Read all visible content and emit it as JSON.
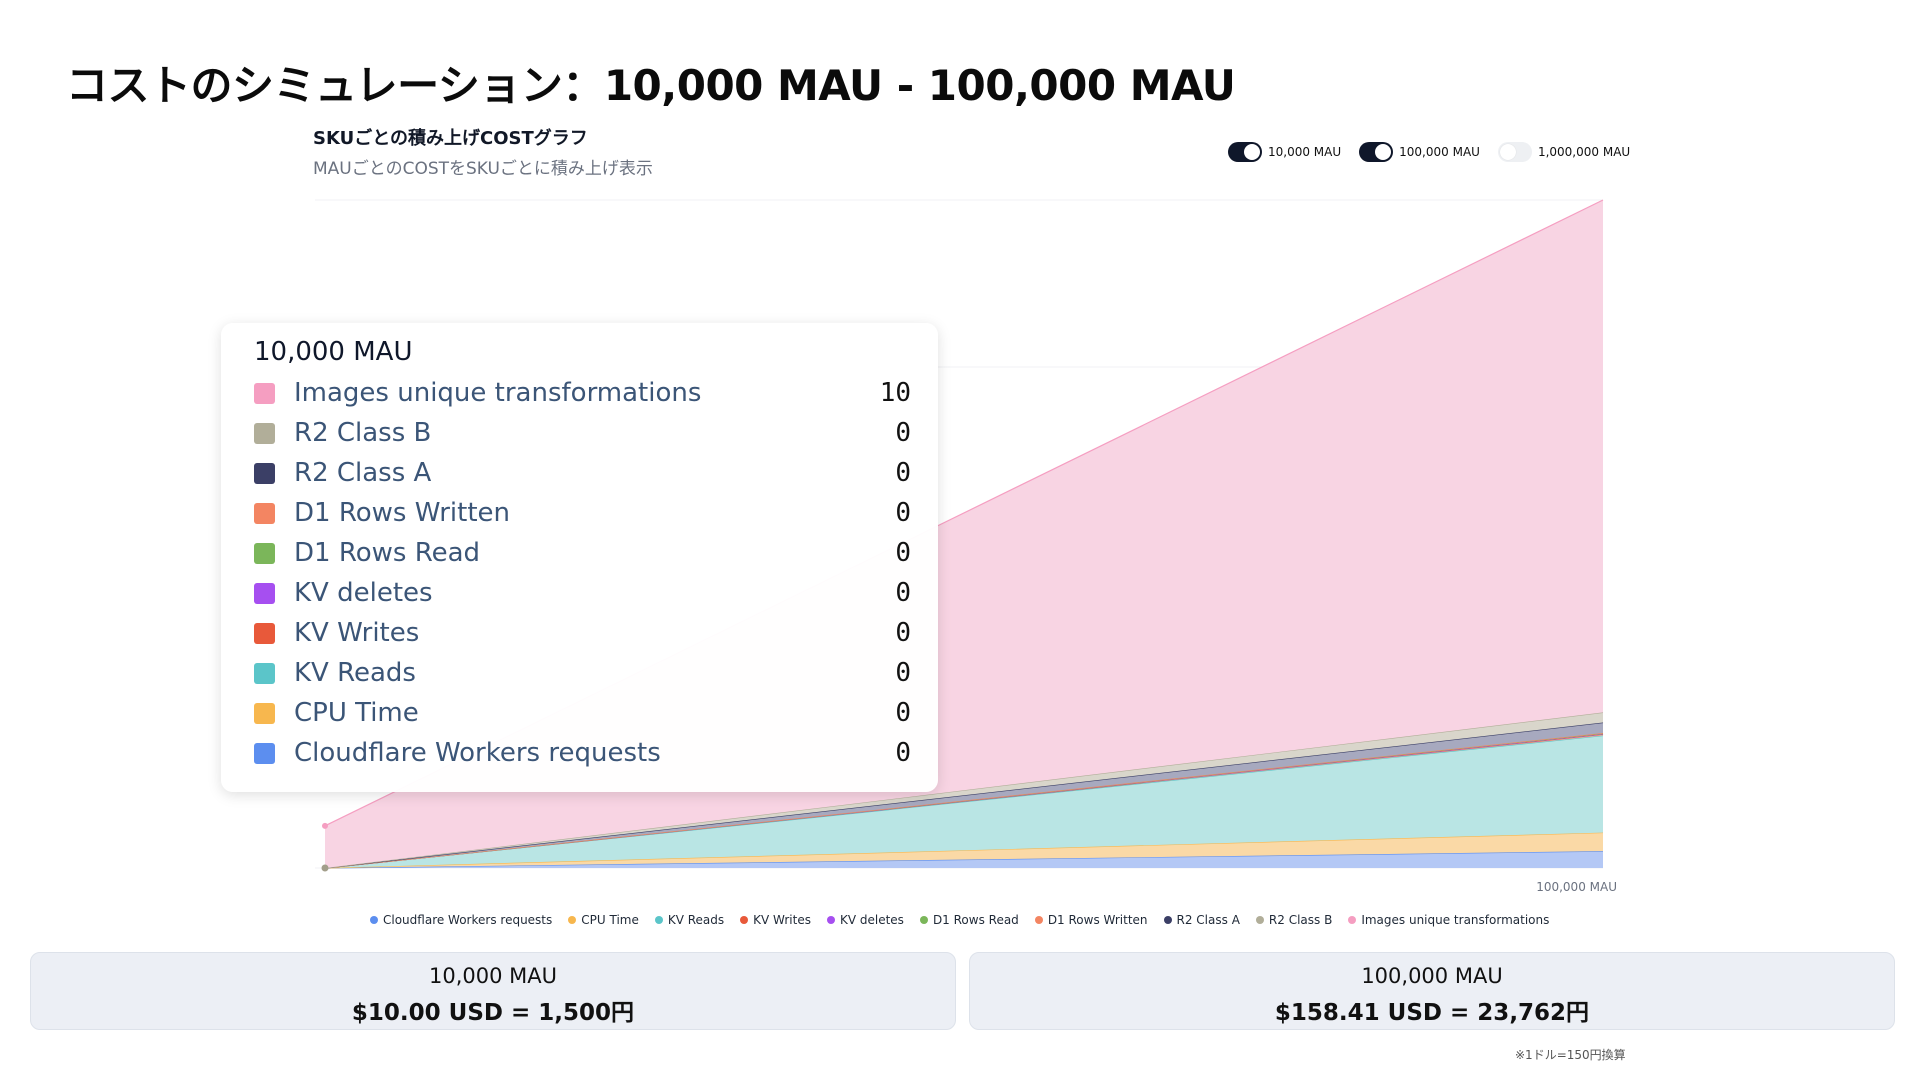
{
  "slide_title": "コストのシミュレーション：10,000 MAU - 100,000 MAU",
  "chart_title": "SKUごとの積み上げCOSTグラフ",
  "chart_subtitle": "MAUごとのCOSTをSKUごとに積み上げ表示",
  "toggles": [
    {
      "label": "10,000 MAU",
      "on": true
    },
    {
      "label": "100,000 MAU",
      "on": true
    },
    {
      "label": "1,000,000 MAU",
      "on": false
    }
  ],
  "tooltip": {
    "title": "10,000 MAU",
    "rows": [
      {
        "label": "Images unique transformations",
        "value": "10",
        "color": "#f59ec1"
      },
      {
        "label": "R2 Class B",
        "value": "0",
        "color": "#b1ae99"
      },
      {
        "label": "R2 Class A",
        "value": "0",
        "color": "#3b3f66"
      },
      {
        "label": "D1 Rows Written",
        "value": "0",
        "color": "#f38562"
      },
      {
        "label": "D1 Rows Read",
        "value": "0",
        "color": "#7bb65a"
      },
      {
        "label": "KV deletes",
        "value": "0",
        "color": "#a64ff0"
      },
      {
        "label": "KV Writes",
        "value": "0",
        "color": "#e8593a"
      },
      {
        "label": "KV Reads",
        "value": "0",
        "color": "#5bc5c9"
      },
      {
        "label": "CPU Time",
        "value": "0",
        "color": "#f7b74e"
      },
      {
        "label": "Cloudflare Workers requests",
        "value": "0",
        "color": "#5c8eef"
      }
    ]
  },
  "summary": [
    {
      "mau": "10,000 MAU",
      "cost": "$10.00 USD = 1,500円"
    },
    {
      "mau": "100,000 MAU",
      "cost": "$158.41 USD = 23,762円"
    }
  ],
  "footnote": "※1ドル=150円換算",
  "chart_data": {
    "type": "area",
    "stacked": true,
    "x": [
      "10,000 MAU",
      "100,000 MAU"
    ],
    "x_tick_labels_shown": [
      "100,000 MAU"
    ],
    "grid": true,
    "legend_position": "bottom",
    "series": [
      {
        "name": "Cloudflare Workers requests",
        "color": "#5c8eef",
        "fill": "#b4c8f5",
        "values": [
          0,
          4
        ]
      },
      {
        "name": "CPU Time",
        "color": "#f7b74e",
        "fill": "#fad9a6",
        "values": [
          0,
          4.4
        ]
      },
      {
        "name": "KV Reads",
        "color": "#5bc5c9",
        "fill": "#b9e5e4",
        "values": [
          0,
          23
        ]
      },
      {
        "name": "KV Writes",
        "color": "#e8593a",
        "fill": "#ecb4a8",
        "values": [
          0,
          0.3
        ]
      },
      {
        "name": "KV deletes",
        "color": "#a64ff0",
        "fill": "#d6b6f3",
        "values": [
          0,
          0.1
        ]
      },
      {
        "name": "D1 Rows Read",
        "color": "#7bb65a",
        "fill": "#c4deb4",
        "values": [
          0,
          0.1
        ]
      },
      {
        "name": "D1 Rows Written",
        "color": "#f38562",
        "fill": "#f6c4b2",
        "values": [
          0,
          0.1
        ]
      },
      {
        "name": "R2 Class A",
        "color": "#3b3f66",
        "fill": "#a7a9bf",
        "values": [
          0,
          2.5
        ]
      },
      {
        "name": "R2 Class B",
        "color": "#b1ae99",
        "fill": "#d9d6cb",
        "values": [
          0,
          2.4
        ]
      },
      {
        "name": "Images unique transformations",
        "color": "#f59ec1",
        "fill": "#f8d4e3",
        "values": [
          10,
          121.51
        ]
      }
    ]
  }
}
